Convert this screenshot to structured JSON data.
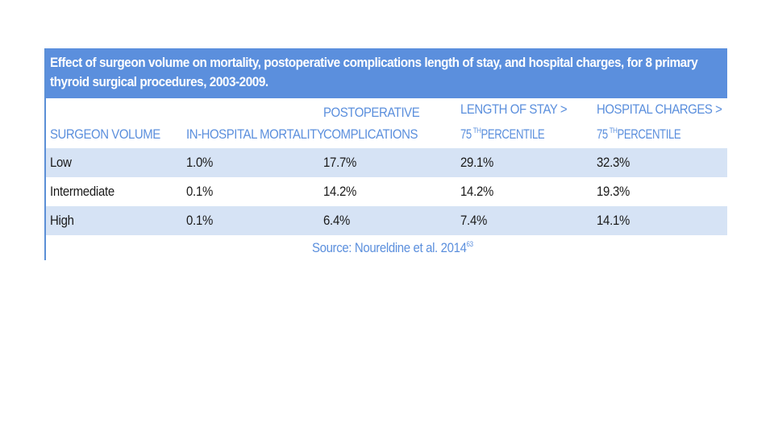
{
  "table": {
    "title": "Effect of surgeon volume on mortality, postoperative complications length of stay, and hospital charges, for 8 primary thyroid surgical procedures, 2003-2009.",
    "headers": [
      {
        "line1": "",
        "line2": "SURGEON VOLUME",
        "sup": ""
      },
      {
        "line1": "",
        "line2": "IN-HOSPITAL MORTALITY",
        "sup": ""
      },
      {
        "line1": "POSTOPERATIVE",
        "line2": "COMPLICATIONS",
        "sup": ""
      },
      {
        "line1": "LENGTH OF STAY >",
        "line2_pre": "75",
        "sup": "TH",
        "line2_post": " PERCENTILE"
      },
      {
        "line1": "HOSPITAL CHARGES >",
        "line2_pre": "75",
        "sup": "TH",
        "line2_post": " PERCENTILE"
      }
    ],
    "rows": [
      {
        "volume": "Low",
        "mortality": "1.0%",
        "complications": "17.7%",
        "length_of_stay": "29.1%",
        "hospital_charges": "32.3%"
      },
      {
        "volume": "Intermediate",
        "mortality": "0.1%",
        "complications": "14.2%",
        "length_of_stay": "14.2%",
        "hospital_charges": "19.3%"
      },
      {
        "volume": "High",
        "mortality": "0.1%",
        "complications": "6.4%",
        "length_of_stay": "7.4%",
        "hospital_charges": "14.1%"
      }
    ],
    "source": "Source: Noureldine et al. 2014",
    "source_sup": "63"
  },
  "colors": {
    "accent": "#5b8fdd",
    "row_shade": "#d6e3f5",
    "text": "#1a1a1a",
    "title_text": "#ffffff"
  }
}
